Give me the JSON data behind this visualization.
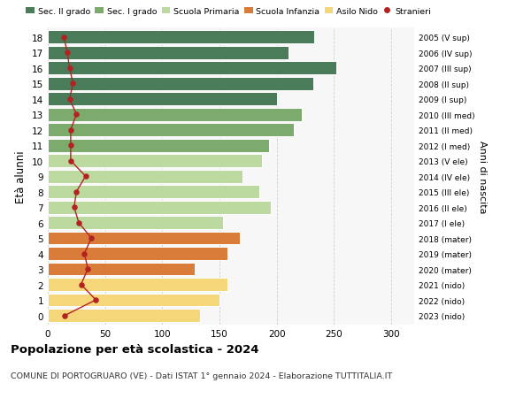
{
  "ages": [
    18,
    17,
    16,
    15,
    14,
    13,
    12,
    11,
    10,
    9,
    8,
    7,
    6,
    5,
    4,
    3,
    2,
    1,
    0
  ],
  "right_labels": [
    "2005 (V sup)",
    "2006 (IV sup)",
    "2007 (III sup)",
    "2008 (II sup)",
    "2009 (I sup)",
    "2010 (III med)",
    "2011 (II med)",
    "2012 (I med)",
    "2013 (V ele)",
    "2014 (IV ele)",
    "2015 (III ele)",
    "2016 (II ele)",
    "2017 (I ele)",
    "2018 (mater)",
    "2019 (mater)",
    "2020 (mater)",
    "2021 (nido)",
    "2022 (nido)",
    "2023 (nido)"
  ],
  "bar_values": [
    233,
    210,
    252,
    232,
    200,
    222,
    215,
    193,
    187,
    170,
    185,
    195,
    153,
    168,
    157,
    128,
    157,
    150,
    133
  ],
  "bar_colors": [
    "#4a7c59",
    "#4a7c59",
    "#4a7c59",
    "#4a7c59",
    "#4a7c59",
    "#7dab6e",
    "#7dab6e",
    "#7dab6e",
    "#bcd9a0",
    "#bcd9a0",
    "#bcd9a0",
    "#bcd9a0",
    "#bcd9a0",
    "#d97c3a",
    "#d97c3a",
    "#d97c3a",
    "#f5d77a",
    "#f5d77a",
    "#f5d77a"
  ],
  "stranieri_values": [
    14,
    17,
    19,
    22,
    19,
    25,
    20,
    20,
    20,
    33,
    25,
    23,
    27,
    38,
    32,
    35,
    29,
    42,
    15
  ],
  "legend_labels": [
    "Sec. II grado",
    "Sec. I grado",
    "Scuola Primaria",
    "Scuola Infanzia",
    "Asilo Nido",
    "Stranieri"
  ],
  "legend_colors": [
    "#4a7c59",
    "#7dab6e",
    "#bcd9a0",
    "#d97c3a",
    "#f5d77a",
    "#b22222"
  ],
  "ylabel": "Età alunni",
  "right_ylabel": "Anni di nascita",
  "title": "Popolazione per età scolastica - 2024",
  "subtitle": "COMUNE DI PORTOGRUARO (VE) - Dati ISTAT 1° gennaio 2024 - Elaborazione TUTTITALIA.IT",
  "xlim": [
    0,
    320
  ],
  "xticks": [
    0,
    50,
    100,
    150,
    200,
    250,
    300
  ],
  "background_color": "#f7f7f7",
  "bar_edge_color": "white",
  "grid_color": "#d0d0d0"
}
